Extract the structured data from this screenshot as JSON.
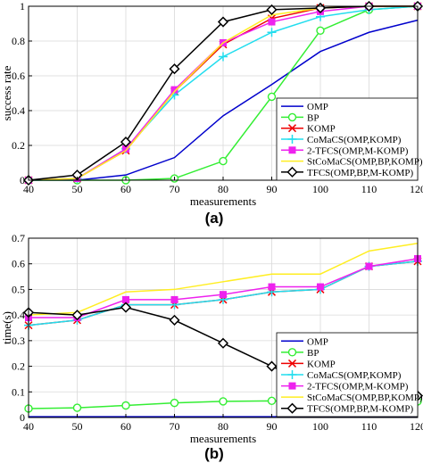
{
  "chart_data": [
    {
      "type": "line",
      "panel_label": "(a)",
      "xlabel": "measurements",
      "ylabel": "success rate",
      "x": [
        40,
        50,
        60,
        70,
        80,
        90,
        100,
        110,
        120
      ],
      "xlim": [
        40,
        120
      ],
      "ylim": [
        0,
        1
      ],
      "xticks": [
        "40",
        "50",
        "60",
        "70",
        "80",
        "90",
        "100",
        "110",
        "120"
      ],
      "yticks": [
        "0",
        "0.2",
        "0.4",
        "0.6",
        "0.8",
        "1"
      ],
      "grid": true,
      "legend_position": "bottom-right",
      "series": [
        {
          "name": "OMP",
          "color": "#0000cc",
          "marker": "none",
          "values": [
            0,
            0,
            0.03,
            0.13,
            0.37,
            0.55,
            0.74,
            0.85,
            0.92
          ]
        },
        {
          "name": "BP",
          "color": "#33ee33",
          "marker": "circle",
          "values": [
            0,
            0,
            0,
            0.01,
            0.11,
            0.48,
            0.86,
            0.98,
            1.0
          ]
        },
        {
          "name": "KOMP",
          "color": "#ee0000",
          "marker": "x",
          "values": [
            0,
            0.01,
            0.17,
            0.51,
            0.78,
            0.93,
            0.99,
            1.0,
            1.0
          ]
        },
        {
          "name": "CoMaCS(OMP,KOMP)",
          "color": "#22ddee",
          "marker": "plus",
          "values": [
            0,
            0.01,
            0.18,
            0.49,
            0.71,
            0.85,
            0.94,
            0.98,
            1.0
          ]
        },
        {
          "name": "2-TFCS(OMP,M-KOMP)",
          "color": "#ee22ee",
          "marker": "square",
          "values": [
            0,
            0.01,
            0.18,
            0.52,
            0.79,
            0.91,
            0.97,
            1.0,
            1.0
          ]
        },
        {
          "name": "StCoMaCS(OMP,BP,KOMP)",
          "color": "#ffee22",
          "marker": "none",
          "values": [
            0,
            0.01,
            0.17,
            0.51,
            0.79,
            0.95,
            0.99,
            1.0,
            1.0
          ]
        },
        {
          "name": "TFCS(OMP,BP,M-KOMP)",
          "color": "#000000",
          "marker": "diamond",
          "values": [
            0,
            0.03,
            0.22,
            0.64,
            0.91,
            0.98,
            0.99,
            1.0,
            1.0
          ]
        }
      ]
    },
    {
      "type": "line",
      "panel_label": "(b)",
      "xlabel": "measurements",
      "ylabel": "time(s)",
      "x": [
        40,
        50,
        60,
        70,
        80,
        90,
        100,
        110,
        120
      ],
      "xlim": [
        40,
        120
      ],
      "ylim": [
        0,
        0.7
      ],
      "xticks": [
        "40",
        "50",
        "60",
        "70",
        "80",
        "90",
        "100",
        "110",
        "120"
      ],
      "yticks": [
        "0",
        "0.1",
        "0.2",
        "0.3",
        "0.4",
        "0.5",
        "0.6",
        "0.7"
      ],
      "grid": true,
      "legend_position": "bottom-right",
      "series": [
        {
          "name": "OMP",
          "color": "#0000cc",
          "marker": "none",
          "values": [
            0.003,
            0.003,
            0.003,
            0.003,
            0.003,
            0.003,
            0.003,
            0.003,
            0.003
          ]
        },
        {
          "name": "BP",
          "color": "#33ee33",
          "marker": "circle",
          "values": [
            0.035,
            0.038,
            0.047,
            0.057,
            0.063,
            0.065,
            0.061,
            0.062,
            0.063
          ]
        },
        {
          "name": "KOMP",
          "color": "#ee0000",
          "marker": "x",
          "values": [
            0.36,
            0.38,
            0.44,
            0.44,
            0.46,
            0.49,
            0.5,
            0.59,
            0.61
          ]
        },
        {
          "name": "CoMaCS(OMP,KOMP)",
          "color": "#22ddee",
          "marker": "plus",
          "values": [
            0.36,
            0.38,
            0.44,
            0.44,
            0.46,
            0.49,
            0.5,
            0.59,
            0.61
          ]
        },
        {
          "name": "2-TFCS(OMP,M-KOMP)",
          "color": "#ee22ee",
          "marker": "square",
          "values": [
            0.39,
            0.39,
            0.46,
            0.46,
            0.48,
            0.51,
            0.51,
            0.59,
            0.62
          ]
        },
        {
          "name": "StCoMaCS(OMP,BP,KOMP)",
          "color": "#ffee22",
          "marker": "none",
          "values": [
            0.4,
            0.41,
            0.49,
            0.5,
            0.53,
            0.56,
            0.56,
            0.65,
            0.68
          ]
        },
        {
          "name": "TFCS(OMP,BP,M-KOMP)",
          "color": "#000000",
          "marker": "diamond",
          "values": [
            0.41,
            0.4,
            0.43,
            0.38,
            0.29,
            0.2,
            0.11,
            0.1,
            0.085
          ]
        }
      ]
    }
  ]
}
